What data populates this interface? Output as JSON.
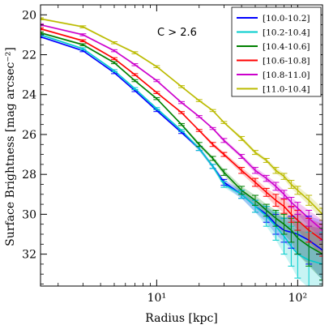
{
  "chart_data": {
    "type": "line",
    "title": "",
    "xlabel": "Radius [kpc]",
    "ylabel": "Surface Brightness [mag arcsec⁻²]",
    "annotation": "C > 2.6",
    "x_scale": "log",
    "xlim": [
      1.5,
      150
    ],
    "ylim": [
      33.6,
      19.5
    ],
    "y_inverted": true,
    "x_ticks": [
      10,
      100
    ],
    "x_tick_labels": [
      "10¹",
      "10²"
    ],
    "y_ticks": [
      20,
      22,
      24,
      26,
      28,
      30,
      32
    ],
    "y_tick_labels": [
      "20",
      "22",
      "24",
      "26",
      "28",
      "30",
      "32"
    ],
    "legend_position": "top-right",
    "x": [
      1.5,
      3,
      5,
      7,
      10,
      15,
      20,
      25,
      30,
      40,
      50,
      60,
      70,
      80,
      90,
      100,
      120,
      150
    ],
    "series": [
      {
        "name": "[10.0-10.2]",
        "color": "#0000ff",
        "values": [
          21.1,
          21.8,
          22.9,
          23.8,
          24.8,
          25.9,
          26.7,
          27.6,
          28.4,
          29.0,
          29.6,
          30.0,
          30.5,
          30.8,
          30.9,
          31.0,
          31.3,
          31.8
        ],
        "errors": [
          0.05,
          0.05,
          0.05,
          0.05,
          0.05,
          0.05,
          0.1,
          0.1,
          0.15,
          0.2,
          0.3,
          0.4,
          0.5,
          0.6,
          0.8,
          1.0,
          1.2,
          1.5
        ]
      },
      {
        "name": "[10.2-10.4]",
        "color": "#00cccc",
        "values": [
          21.0,
          21.7,
          22.8,
          23.7,
          24.7,
          25.8,
          26.7,
          27.6,
          28.5,
          29.0,
          29.6,
          30.1,
          30.6,
          31.1,
          31.6,
          32.0,
          32.3,
          32.5
        ],
        "errors": [
          0.05,
          0.05,
          0.05,
          0.05,
          0.05,
          0.05,
          0.1,
          0.1,
          0.15,
          0.2,
          0.3,
          0.5,
          0.7,
          0.9,
          1.0,
          1.2,
          1.4,
          1.6
        ]
      },
      {
        "name": "[10.4-10.6]",
        "color": "#008000",
        "values": [
          20.9,
          21.5,
          22.4,
          23.3,
          24.2,
          25.5,
          26.5,
          27.2,
          27.9,
          28.8,
          29.3,
          29.8,
          30.2,
          30.5,
          30.8,
          31.2,
          31.6,
          32.0
        ],
        "errors": [
          0.05,
          0.05,
          0.05,
          0.05,
          0.05,
          0.05,
          0.1,
          0.1,
          0.15,
          0.2,
          0.25,
          0.3,
          0.4,
          0.5,
          0.6,
          0.8,
          1.0,
          1.3
        ]
      },
      {
        "name": "[10.6-10.8]",
        "color": "#ff0000",
        "values": [
          20.7,
          21.3,
          22.2,
          23.0,
          23.9,
          24.9,
          25.8,
          26.5,
          27.0,
          27.8,
          28.4,
          28.9,
          29.3,
          29.6,
          30.0,
          30.3,
          30.8,
          31.3
        ],
        "errors": [
          0.05,
          0.05,
          0.05,
          0.05,
          0.05,
          0.05,
          0.05,
          0.1,
          0.1,
          0.15,
          0.2,
          0.2,
          0.3,
          0.35,
          0.4,
          0.5,
          0.6,
          0.8
        ]
      },
      {
        "name": "[10.8-11.0]",
        "color": "#cc00cc",
        "values": [
          20.5,
          21.0,
          21.8,
          22.5,
          23.3,
          24.4,
          25.1,
          25.7,
          26.3,
          27.1,
          27.8,
          28.2,
          28.6,
          29.0,
          29.4,
          29.7,
          30.2,
          30.8
        ],
        "errors": [
          0.05,
          0.05,
          0.05,
          0.05,
          0.05,
          0.05,
          0.05,
          0.05,
          0.1,
          0.1,
          0.15,
          0.15,
          0.2,
          0.2,
          0.25,
          0.3,
          0.4,
          0.5
        ]
      },
      {
        "name": "[11.0-10.4]",
        "color": "#bbbb00",
        "values": [
          20.2,
          20.6,
          21.4,
          21.9,
          22.6,
          23.6,
          24.3,
          24.8,
          25.4,
          26.2,
          26.9,
          27.3,
          27.8,
          28.1,
          28.5,
          28.8,
          29.3,
          30.0
        ],
        "errors": [
          0.05,
          0.05,
          0.05,
          0.05,
          0.05,
          0.05,
          0.05,
          0.05,
          0.05,
          0.1,
          0.1,
          0.1,
          0.15,
          0.15,
          0.2,
          0.2,
          0.25,
          0.3
        ]
      }
    ]
  }
}
